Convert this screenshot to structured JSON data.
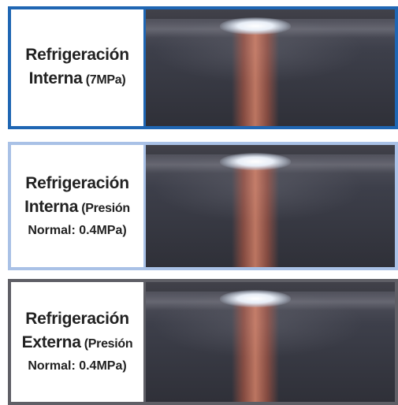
{
  "panels": [
    {
      "label_main_1": "Refrigeración",
      "label_main_2": "Interna",
      "label_small_2": " (7MPa)",
      "label_line3": "",
      "border_color": "#1f66b3"
    },
    {
      "label_main_1": "Refrigeración",
      "label_main_2": "Interna",
      "label_small_2": " (Presión",
      "label_line3": "Normal: 0.4MPa)",
      "border_color": "#a9c1e6"
    },
    {
      "label_main_1": "Refrigeración",
      "label_main_2": "Externa",
      "label_small_2": " (Presión",
      "label_line3": "Normal: 0.4MPa)",
      "border_color": "#5f5f66"
    }
  ]
}
